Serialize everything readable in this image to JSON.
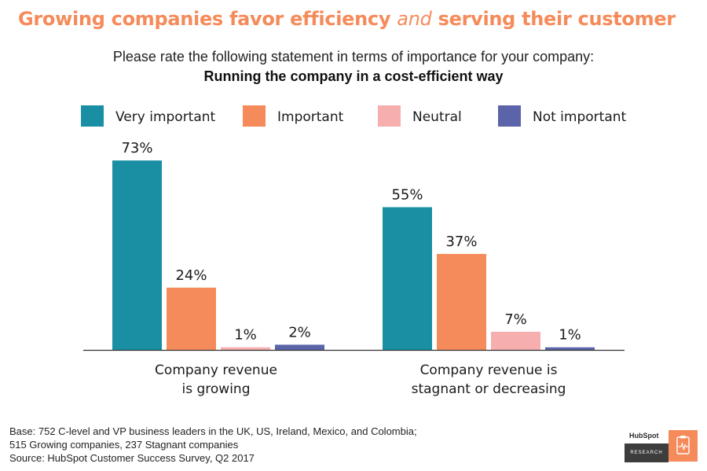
{
  "header": {
    "headline_part1": "Growing companies favor efficiency",
    "headline_italic": "and",
    "headline_part2": "serving their customer",
    "question": "Please rate the following statement in terms of importance for your company:",
    "statement": "Running the company in a cost-efficient way"
  },
  "chart_data": {
    "type": "bar",
    "categories": [
      [
        "Company revenue",
        "is growing"
      ],
      [
        "Company revenue is",
        "stagnant or decreasing"
      ]
    ],
    "series": [
      {
        "name": "Very important",
        "color": "#1a8fa3",
        "values": [
          73,
          55
        ]
      },
      {
        "name": "Important",
        "color": "#f58b5a",
        "values": [
          24,
          37
        ]
      },
      {
        "name": "Neutral",
        "color": "#f6aeae",
        "values": [
          1,
          7
        ]
      },
      {
        "name": "Not important",
        "color": "#5b64a8",
        "values": [
          2,
          1
        ]
      }
    ],
    "value_suffix": "%",
    "ylim": [
      0,
      80
    ],
    "legend_position": "top",
    "grid": false
  },
  "footnote": {
    "line1": "Base: 752 C-level and VP business leaders in the UK, US, Ireland, Mexico, and Colombia;",
    "line2": "515 Growing companies, 237 Stagnant companies",
    "line3": "Source: HubSpot Customer Success Survey, Q2 2017"
  },
  "logo": {
    "brand": "HubSpot",
    "subtitle": "RESEARCH",
    "icon": "clipboard-pulse-icon"
  }
}
